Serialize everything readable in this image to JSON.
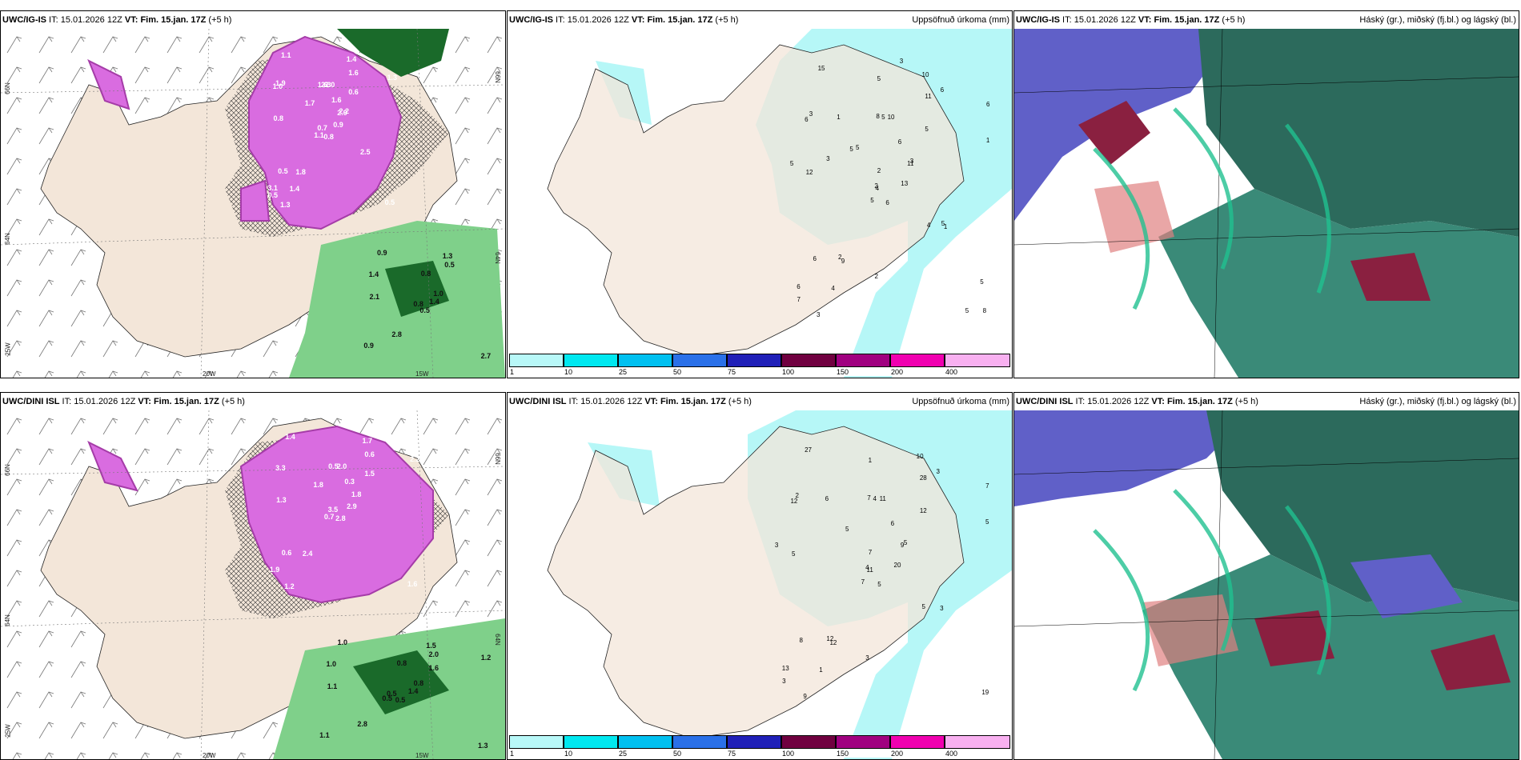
{
  "panels": {
    "p1": {
      "model": "UWC/IG-IS",
      "it": "15.01.2026 12Z",
      "vt_label": "VT:",
      "vt": "Fim. 15.jan. 17Z",
      "lead": "(+5 h)",
      "axes": {
        "lat66": "66N",
        "lat64": "64N",
        "lon25": "25W",
        "lon20": "20W",
        "lon15": "15W",
        "lat66r": "66N",
        "lat64r": "64N"
      }
    },
    "p2": {
      "model": "UWC/IG-IS",
      "it": "15.01.2026 12Z",
      "vt_label": "VT:",
      "vt": "Fim. 15.jan. 17Z",
      "lead": "(+5 h)",
      "title_right": "Uppsöfnuð úrkoma (mm)"
    },
    "p3": {
      "model": "UWC/IG-IS",
      "it": "15.01.2026 12Z",
      "vt_label": "VT:",
      "vt": "Fim. 15.jan. 17Z",
      "lead": "(+5 h)",
      "title_right": "Háský (gr.), miðský (fj.bl.) og lágský (bl.)"
    },
    "p4": {
      "model": "UWC/DINI ISL",
      "it": "15.01.2026 12Z",
      "vt_label": "VT:",
      "vt": "Fim. 15.jan. 17Z",
      "lead": "(+5 h)",
      "axes": {
        "lat66": "66N",
        "lat64": "64N",
        "lon25": "25W",
        "lon20": "20W",
        "lon15": "15W",
        "lat66r": "66N",
        "lat64r": "64N"
      }
    },
    "p5": {
      "model": "UWC/DINI ISL",
      "it": "15.01.2026 12Z",
      "vt_label": "VT:",
      "vt": "Fim. 15.jan. 17Z",
      "lead": "(+5 h)",
      "title_right": "Uppsöfnuð úrkoma (mm)"
    },
    "p6": {
      "model": "UWC/DINI ISL",
      "it": "15.01.2026 12Z",
      "vt_label": "VT:",
      "vt": "Fim. 15.jan. 17Z",
      "lead": "(+5 h)",
      "title_right": "Háský (gr.), miðský (fj.bl.) og lágský (bl.)"
    }
  },
  "legend": {
    "labels": [
      "1",
      "10",
      "25",
      "50",
      "75",
      "100",
      "150",
      "200",
      "400"
    ],
    "colors": [
      "#b8f8f8",
      "#00e8f0",
      "#00c0f0",
      "#2a70e8",
      "#2020b8",
      "#700040",
      "#a00080",
      "#f000b0",
      "#f8b0f0"
    ]
  },
  "precip_labels_top": [
    "6",
    "6",
    "4",
    "6",
    "11",
    "9",
    "10",
    "10",
    "11",
    "13",
    "15",
    "8",
    "12",
    "6",
    "5",
    "5",
    "3",
    "8",
    "6",
    "6",
    "5",
    "7",
    "4",
    "5",
    "3",
    "1",
    "3",
    "5",
    "5",
    "4",
    "1",
    "2",
    "2",
    "2",
    "1",
    "6",
    "2",
    "5",
    "5",
    "5",
    "3",
    "5",
    "3"
  ],
  "precip_labels_bottom": [
    "5",
    "12",
    "11",
    "13",
    "9",
    "12",
    "10",
    "11",
    "28",
    "20",
    "27",
    "19",
    "5",
    "7",
    "7",
    "12",
    "9",
    "7",
    "6",
    "8",
    "5",
    "3",
    "1",
    "4",
    "5",
    "3",
    "2",
    "1",
    "3",
    "5",
    "5",
    "4",
    "3",
    "7",
    "6",
    "3",
    "12"
  ],
  "snow_labels_top": [
    "0.8",
    "1.0",
    "0.7",
    "3.1",
    "2.9",
    "1.8",
    "1.4",
    "2.0",
    "1.6",
    "0.9",
    "1.1",
    "0.5",
    "0.8",
    "1.3",
    "1.1",
    "0.6",
    "1.3",
    "1.6",
    "1.6",
    "0.5",
    "1.7",
    "0.5",
    "1.4",
    "2.3",
    "2.2",
    "2.5",
    "1.9"
  ],
  "rain_labels_top": [
    "0.5",
    "1.4",
    "0.8",
    "0.9",
    "1.0",
    "2.8",
    "1.3",
    "0.8",
    "0.5",
    "1.4",
    "0.9",
    "2.7",
    "2.1"
  ],
  "snow_labels_bottom": [
    "2.8",
    "3.3",
    "3.5",
    "1.9",
    "1.8",
    "2.4",
    "1.7",
    "2.0",
    "0.6",
    "2.9",
    "1.4",
    "1.6",
    "1.3",
    "2.2",
    "0.7",
    "1.5",
    "1.2",
    "0.5",
    "0.3",
    "0.6",
    "1.8"
  ],
  "rain_labels_bottom": [
    "0.5",
    "1.0",
    "0.5",
    "1.1",
    "0.8",
    "2.8",
    "1.5",
    "0.8",
    "2.0",
    "1.4",
    "1.0",
    "1.3",
    "1.1",
    "1.2",
    "0.5",
    "1.6"
  ],
  "colors": {
    "land": "#f3e6d9",
    "snow": "#d96ce0",
    "snow_dark": "#a53ca8",
    "rain": "#7fd08a",
    "rain_dark": "#1a6a2a",
    "precip": "#b6f7f7",
    "cloud_high": "#6060c8",
    "cloud_mid": "#2c6a5c",
    "cloud_low": "#20c090"
  }
}
